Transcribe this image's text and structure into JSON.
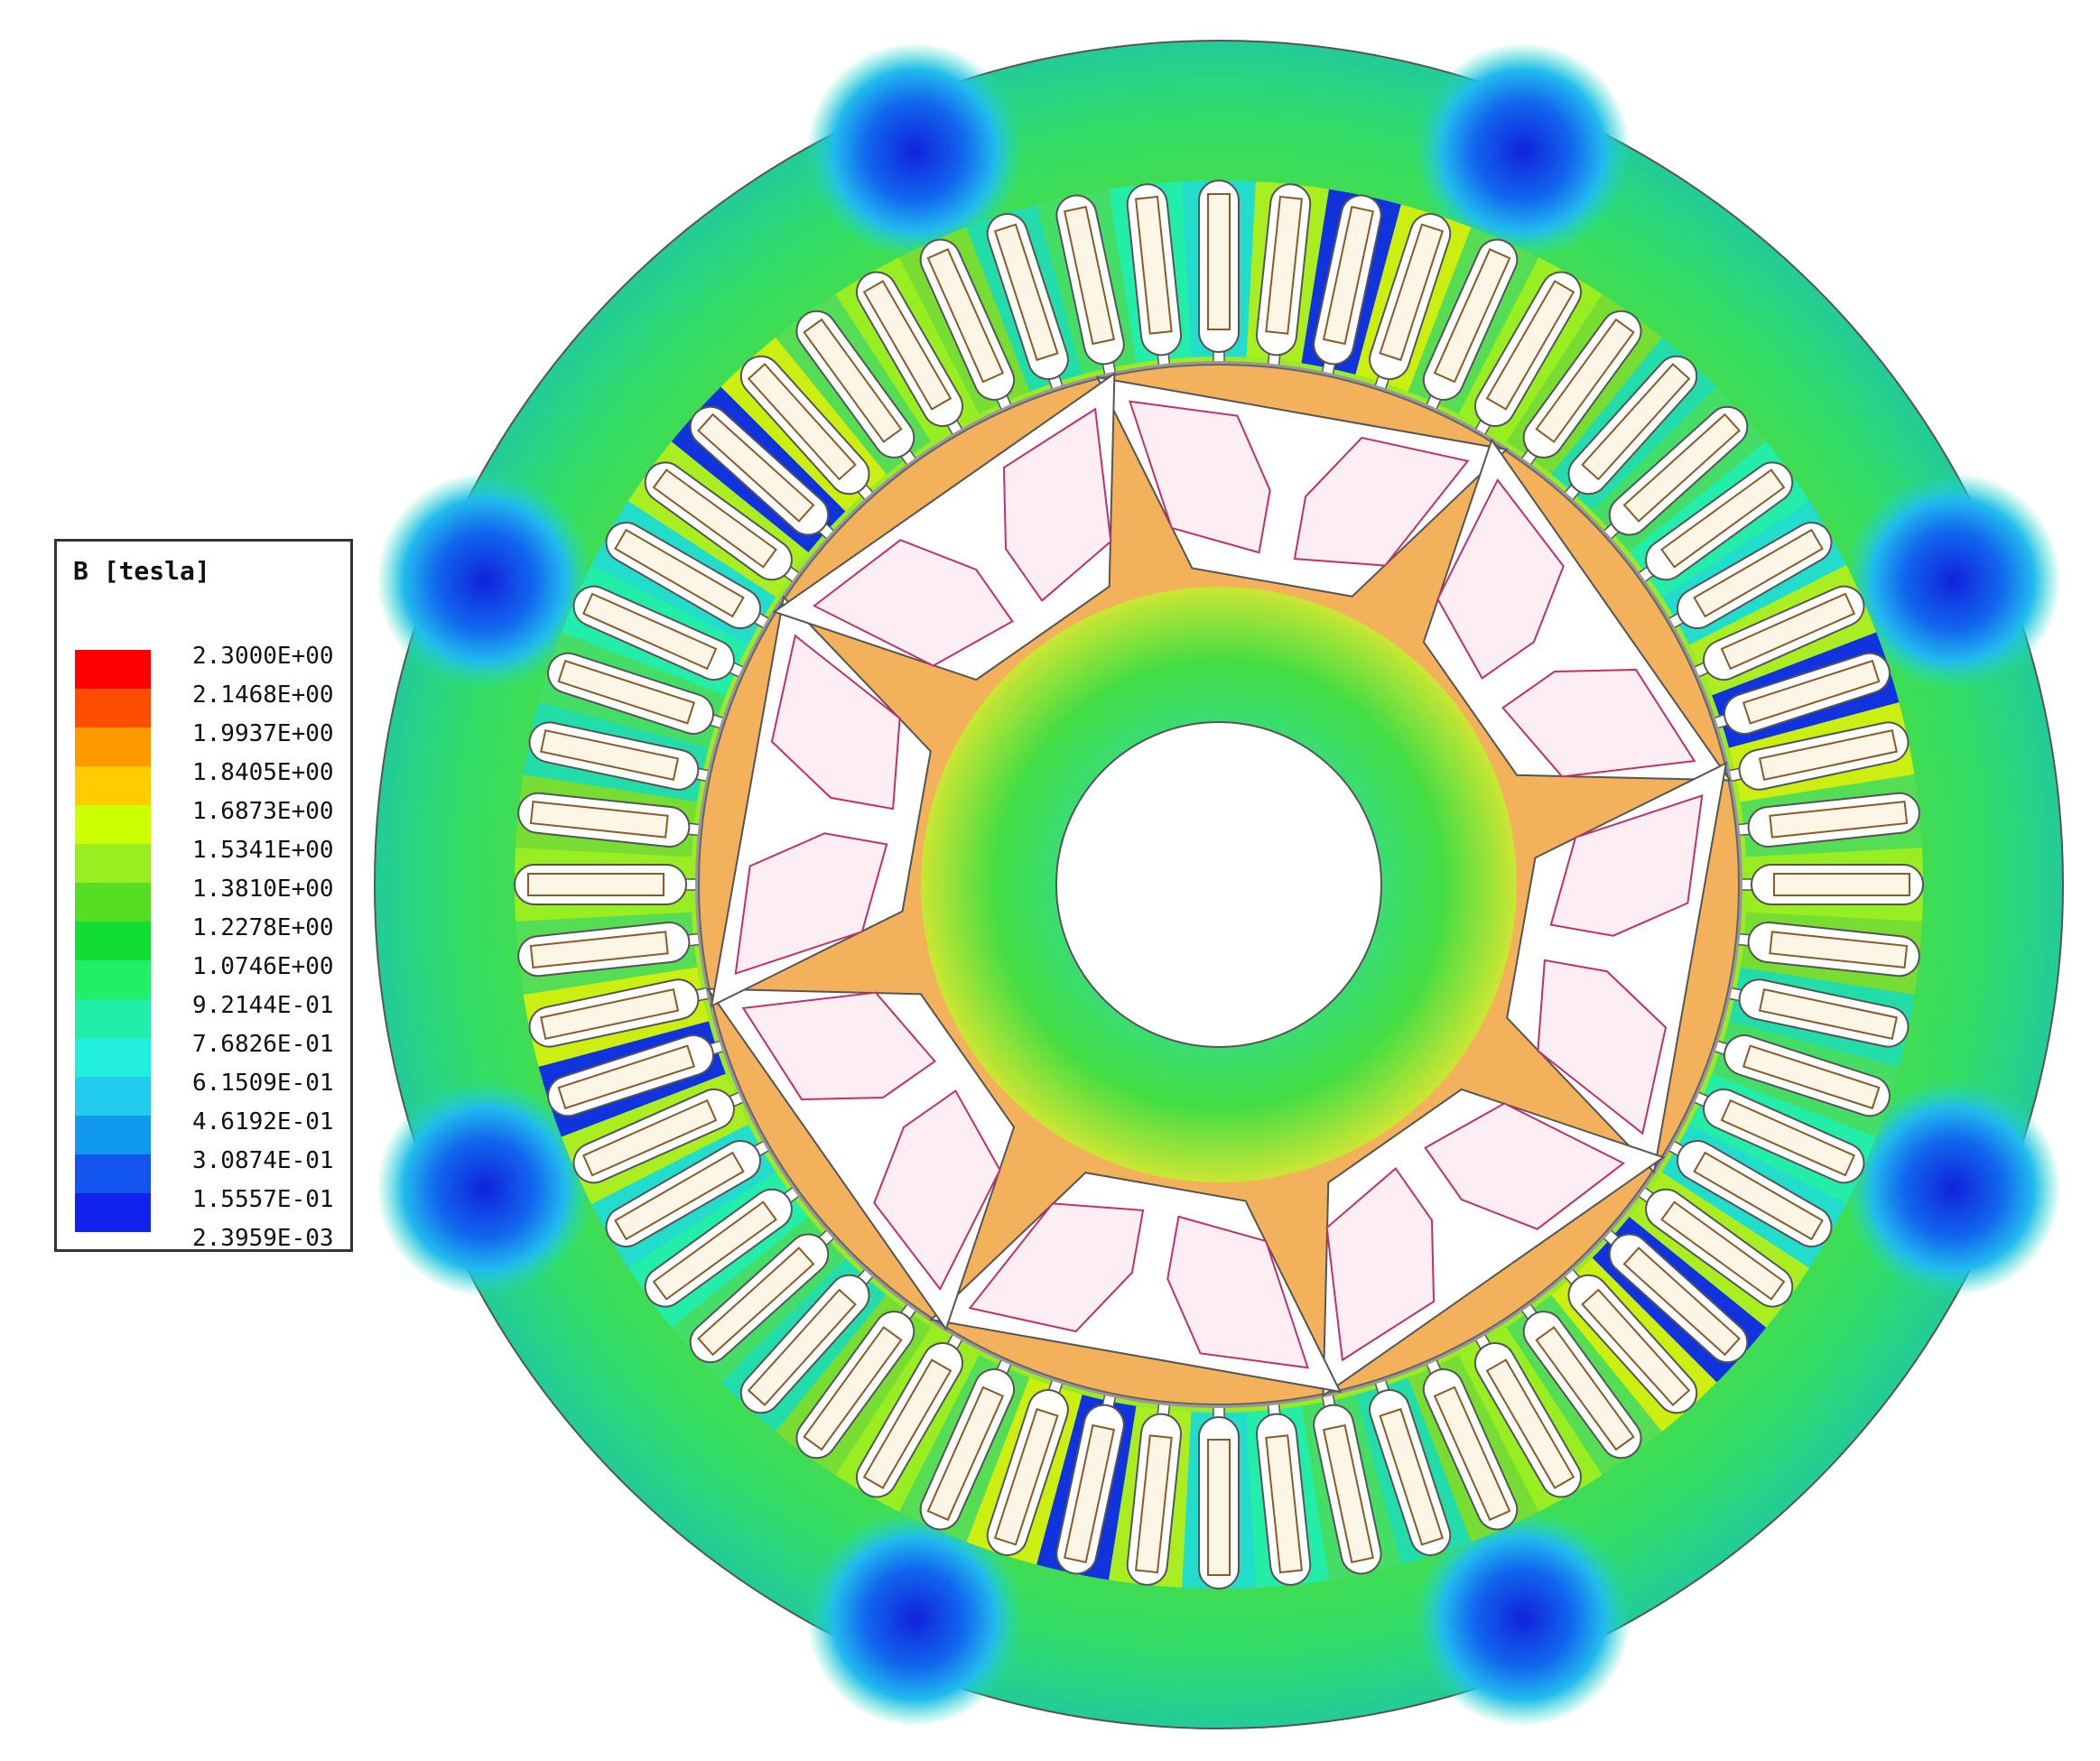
{
  "legend": {
    "title": "B [tesla]",
    "values": [
      "2.3000E+00",
      "2.1468E+00",
      "1.9937E+00",
      "1.8405E+00",
      "1.6873E+00",
      "1.5341E+00",
      "1.3810E+00",
      "1.2278E+00",
      "1.0746E+00",
      "9.2144E-01",
      "7.6826E-01",
      "6.1509E-01",
      "4.6192E-01",
      "3.0874E-01",
      "1.5557E-01",
      "2.3959E-03"
    ],
    "colors": [
      "#ff0000",
      "#ff4d00",
      "#ff9900",
      "#ffcc00",
      "#ccff00",
      "#99ee22",
      "#55dd22",
      "#11dd33",
      "#22ee66",
      "#22eeaa",
      "#22eedd",
      "#22ccee",
      "#1199ee",
      "#1155ee",
      "#1122ee"
    ]
  },
  "figure": {
    "stator_slots": 60,
    "rotor_poles": 8,
    "colors": {
      "stator_yoke": "#33dd44",
      "yoke_low": "#2299ff",
      "yoke_min": "#1133dd",
      "rotor_core": "#f0a84a",
      "rotor_hub": "#44dd55",
      "slot_fill": "#ffffff",
      "conductor": "#fdf5e6",
      "conductor_outline": "#8b5a2b",
      "pocket_fill": "#ffffff",
      "magnet_fill": "#fdeef4",
      "magnet_outline": "#c0306a",
      "outline": "#555555"
    }
  }
}
